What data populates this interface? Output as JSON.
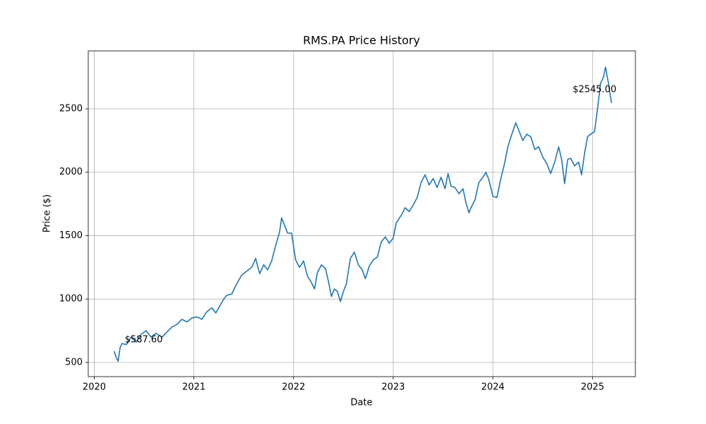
{
  "chart_data": {
    "type": "line",
    "title": "RMS.PA Price History",
    "x_label": "Date",
    "y_label": "Price ($)",
    "color": "#1f77b4",
    "grid": true,
    "x": [
      2020.2,
      2020.22,
      2020.24,
      2020.26,
      2020.28,
      2020.32,
      2020.37,
      2020.42,
      2020.47,
      2020.52,
      2020.57,
      2020.62,
      2020.68,
      2020.73,
      2020.78,
      2020.83,
      2020.88,
      2020.93,
      2020.98,
      2021.03,
      2021.08,
      2021.13,
      2021.18,
      2021.22,
      2021.27,
      2021.3,
      2021.33,
      2021.38,
      2021.43,
      2021.48,
      2021.53,
      2021.58,
      2021.62,
      2021.66,
      2021.7,
      2021.74,
      2021.78,
      2021.82,
      2021.86,
      2021.88,
      2021.91,
      2021.94,
      2021.98,
      2022.02,
      2022.06,
      2022.1,
      2022.14,
      2022.18,
      2022.21,
      2022.24,
      2022.28,
      2022.32,
      2022.35,
      2022.38,
      2022.41,
      2022.44,
      2022.47,
      2022.5,
      2022.53,
      2022.57,
      2022.61,
      2022.65,
      2022.69,
      2022.72,
      2022.76,
      2022.8,
      2022.84,
      2022.88,
      2022.92,
      2022.96,
      2023,
      2023.03,
      2023.08,
      2023.12,
      2023.16,
      2023.2,
      2023.24,
      2023.28,
      2023.32,
      2023.36,
      2023.4,
      2023.44,
      2023.48,
      2023.52,
      2023.55,
      2023.58,
      2023.62,
      2023.66,
      2023.7,
      2023.73,
      2023.76,
      2023.78,
      2023.82,
      2023.86,
      2023.9,
      2023.93,
      2023.96,
      2024,
      2024.04,
      2024.08,
      2024.12,
      2024.15,
      2024.19,
      2024.23,
      2024.26,
      2024.3,
      2024.34,
      2024.38,
      2024.42,
      2024.46,
      2024.5,
      2024.54,
      2024.58,
      2024.62,
      2024.66,
      2024.69,
      2024.72,
      2024.75,
      2024.78,
      2024.82,
      2024.86,
      2024.89,
      2024.92,
      2024.95,
      2024.98,
      2025.02,
      2025.05,
      2025.08,
      2025.11,
      2025.13,
      2025.16,
      2025.19
    ],
    "values": [
      587.6,
      540,
      510,
      620,
      650,
      640,
      700,
      660,
      720,
      750,
      700,
      730,
      700,
      740,
      780,
      800,
      840,
      820,
      850,
      860,
      840,
      900,
      930,
      890,
      960,
      1000,
      1030,
      1040,
      1120,
      1190,
      1220,
      1250,
      1320,
      1200,
      1270,
      1230,
      1300,
      1420,
      1530,
      1640,
      1580,
      1520,
      1520,
      1310,
      1250,
      1300,
      1180,
      1130,
      1080,
      1210,
      1270,
      1240,
      1140,
      1020,
      1080,
      1060,
      980,
      1060,
      1120,
      1320,
      1370,
      1270,
      1230,
      1160,
      1260,
      1310,
      1330,
      1450,
      1490,
      1440,
      1480,
      1600,
      1660,
      1720,
      1690,
      1740,
      1800,
      1920,
      1980,
      1900,
      1950,
      1880,
      1960,
      1870,
      1990,
      1890,
      1880,
      1830,
      1870,
      1760,
      1680,
      1720,
      1780,
      1920,
      1960,
      2000,
      1940,
      1810,
      1800,
      1950,
      2080,
      2200,
      2300,
      2390,
      2330,
      2250,
      2300,
      2280,
      2180,
      2200,
      2120,
      2070,
      1990,
      2080,
      2200,
      2100,
      1910,
      2100,
      2110,
      2050,
      2080,
      1980,
      2150,
      2280,
      2300,
      2320,
      2500,
      2700,
      2750,
      2830,
      2700,
      2545
    ],
    "value_labels": [
      "$587.60",
      null,
      null,
      null,
      null,
      null,
      null,
      null,
      null,
      null,
      null,
      null,
      null,
      null,
      null,
      null,
      null,
      null,
      null,
      null,
      null,
      null,
      null,
      null,
      null,
      null,
      null,
      null,
      null,
      null,
      null,
      null,
      null,
      null,
      null,
      null,
      null,
      null,
      null,
      null,
      null,
      null,
      null,
      null,
      null,
      null,
      null,
      null,
      null,
      null,
      null,
      null,
      null,
      null,
      null,
      null,
      null,
      null,
      null,
      null,
      null,
      null,
      null,
      null,
      null,
      null,
      null,
      null,
      null,
      null,
      null,
      null,
      null,
      null,
      null,
      null,
      null,
      null,
      null,
      null,
      null,
      null,
      null,
      null,
      null,
      null,
      null,
      null,
      null,
      null,
      null,
      null,
      null,
      null,
      null,
      null,
      null,
      null,
      null,
      null,
      null,
      null,
      null,
      null,
      null,
      null,
      null,
      null,
      null,
      null,
      null,
      null,
      null,
      null,
      null,
      null,
      null,
      null,
      null,
      null,
      null,
      null,
      null,
      null,
      null,
      null,
      null,
      null,
      null,
      null,
      null,
      "$2545.00"
    ],
    "xlim": [
      2019.94,
      2025.43
    ],
    "xticks": [
      2020,
      2021,
      2022,
      2023,
      2024,
      2025
    ],
    "ylim": [
      388,
      2957
    ],
    "yticks": [
      500,
      1000,
      1500,
      2000,
      2500
    ]
  }
}
